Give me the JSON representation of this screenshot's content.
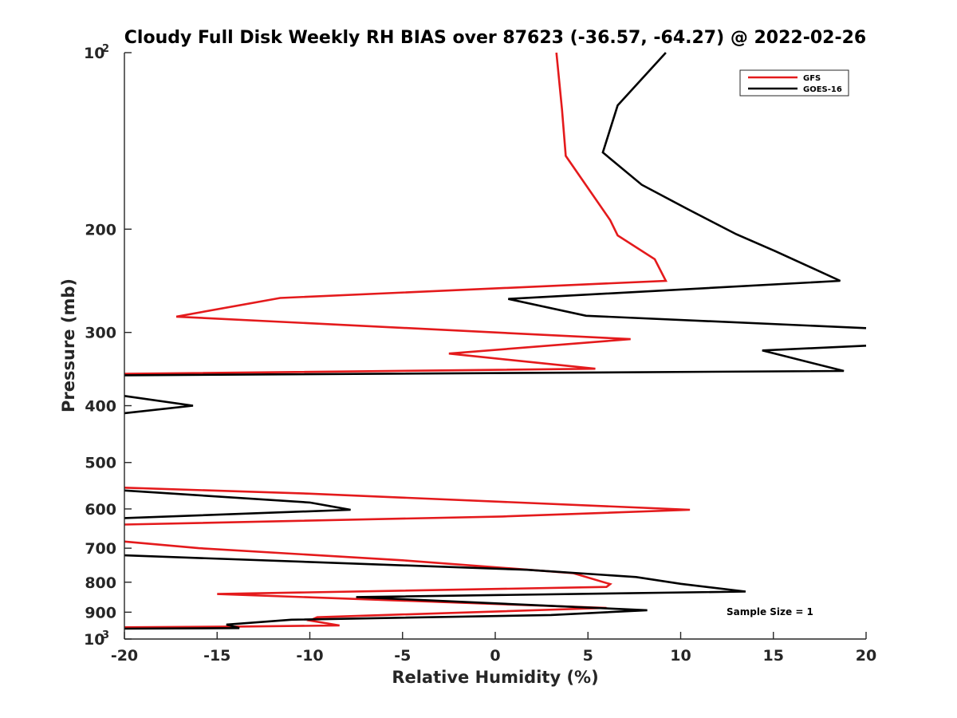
{
  "chart_data": {
    "type": "line",
    "title": "Cloudy Full Disk Weekly RH BIAS over 87623 (-36.57, -64.27) @ 2022-02-26",
    "xlabel": "Relative Humidity (%)",
    "ylabel": "Pressure (mb)",
    "xlim": [
      -20,
      20
    ],
    "ylim": [
      100,
      1000
    ],
    "yscale": "log",
    "y_reversed": true,
    "xticks": [
      -20,
      -15,
      -10,
      -5,
      0,
      5,
      10,
      15,
      20
    ],
    "xtick_labels": [
      "-20",
      "-15",
      "-10",
      "-5",
      "0",
      "5",
      "10",
      "15",
      "20"
    ],
    "yticks": [
      100,
      200,
      300,
      400,
      500,
      600,
      700,
      800,
      900,
      1000
    ],
    "ytick_labels": [
      {
        "base": "10",
        "exp": "2"
      },
      {
        "base": "200"
      },
      {
        "base": "300"
      },
      {
        "base": "400"
      },
      {
        "base": "500"
      },
      {
        "base": "600"
      },
      {
        "base": "700"
      },
      {
        "base": "800"
      },
      {
        "base": "900"
      },
      {
        "base": "10",
        "exp": "3"
      }
    ],
    "grid": false,
    "legend_location": "top-right",
    "annotation": "Sample Size = 1",
    "series": [
      {
        "name": "GFS",
        "color": "#e41a1c",
        "segments": [
          [
            [
              3.3,
              100
            ],
            [
              3.6,
              125
            ],
            [
              3.8,
              150
            ],
            [
              6.2,
              193
            ],
            [
              6.6,
              205
            ],
            [
              8.6,
              225
            ],
            [
              9.2,
              245
            ],
            [
              -11.6,
              262
            ],
            [
              -17.2,
              282
            ],
            [
              7.3,
              308
            ],
            [
              -2.5,
              326
            ],
            [
              5.4,
              346
            ],
            [
              -20,
              353
            ]
          ],
          [
            [
              -20,
              552
            ],
            [
              -10,
              565
            ],
            [
              10.5,
              602
            ],
            [
              0.4,
              618
            ],
            [
              -20,
              638
            ]
          ],
          [
            [
              -20,
              682
            ],
            [
              -16,
              700
            ],
            [
              -5,
              734
            ],
            [
              4.2,
              772
            ],
            [
              6.2,
              806
            ],
            [
              6.0,
              815
            ],
            [
              -15,
              838
            ],
            [
              6,
              885
            ],
            [
              -9.6,
              918
            ],
            [
              -10,
              930
            ],
            [
              -8.4,
              948
            ],
            [
              -13.5,
              952
            ],
            [
              -20,
              955
            ]
          ]
        ]
      },
      {
        "name": "GOES-16",
        "color": "#000000",
        "segments": [
          [
            [
              9.2,
              100
            ],
            [
              6.6,
              123
            ],
            [
              5.8,
              148
            ],
            [
              7.9,
              168
            ],
            [
              10.4,
              185
            ],
            [
              13.0,
              204
            ],
            [
              15.1,
              218
            ],
            [
              18.6,
              245
            ],
            [
              0.7,
              263
            ],
            [
              4.9,
              281
            ],
            [
              20,
              295
            ]
          ],
          [
            [
              20,
              316
            ],
            [
              14.4,
              322
            ],
            [
              18.8,
              349
            ],
            [
              -20,
              355
            ]
          ],
          [
            [
              -20,
              385
            ],
            [
              -16.3,
              400
            ],
            [
              -20,
              412
            ]
          ],
          [
            [
              -20,
              558
            ],
            [
              -10,
              585
            ],
            [
              -7.8,
              602
            ],
            [
              -20,
              622
            ]
          ],
          [
            [
              -20,
              720
            ],
            [
              1.7,
              762
            ],
            [
              7.6,
              784
            ],
            [
              10.0,
              805
            ],
            [
              13.5,
              830
            ],
            [
              -7.5,
              848
            ],
            [
              8.2,
              893
            ],
            [
              3.0,
              910
            ],
            [
              -11.0,
              927
            ],
            [
              -14.5,
              945
            ],
            [
              -13.8,
              958
            ],
            [
              -20,
              960
            ]
          ]
        ]
      }
    ]
  }
}
